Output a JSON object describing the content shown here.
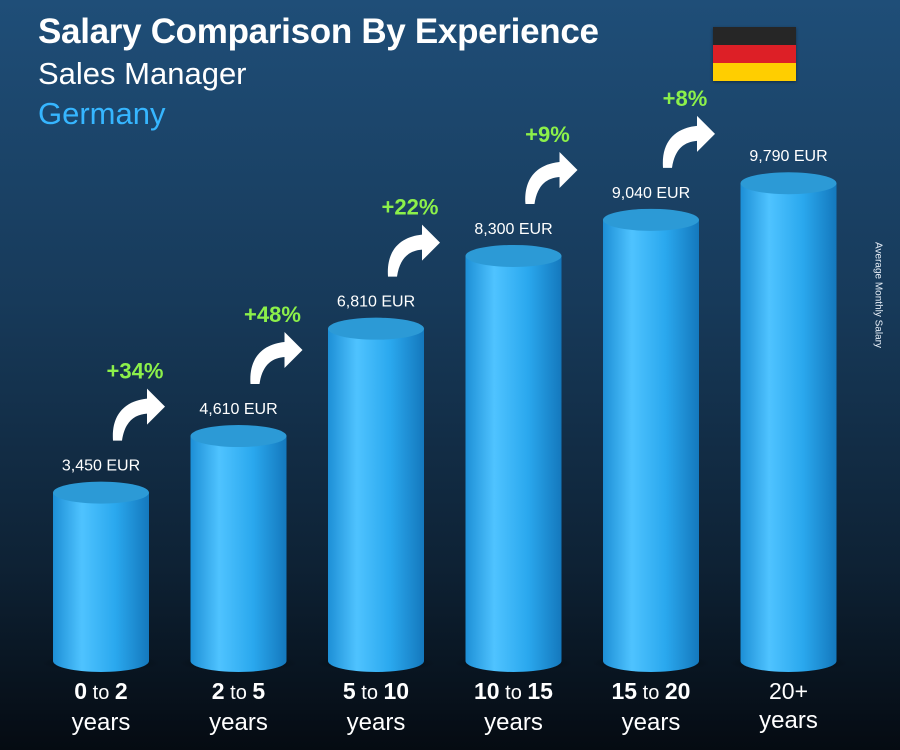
{
  "header": {
    "title": "Salary Comparison By Experience",
    "subtitle": "Sales Manager",
    "country": "Germany"
  },
  "side_label": "Average Monthly Salary",
  "flag_colors": [
    "#262626",
    "#dd1f26",
    "#ffce00"
  ],
  "colors": {
    "bar_front": "#27a6ec",
    "bar_highlight": "#4fc3ff",
    "bar_top": "#2c9ad6",
    "percent": "#8cf04a",
    "arrow": "#ffffff"
  },
  "chart_data": {
    "type": "bar",
    "title": "Salary Comparison By Experience",
    "ylabel": "Average Monthly Salary",
    "unit": "EUR",
    "categories": [
      {
        "a": "0",
        "to": "to",
        "b": "2",
        "unit": "years"
      },
      {
        "a": "2",
        "to": "to",
        "b": "5",
        "unit": "years"
      },
      {
        "a": "5",
        "to": "to",
        "b": "10",
        "unit": "years"
      },
      {
        "a": "10",
        "to": "to",
        "b": "15",
        "unit": "years"
      },
      {
        "a": "15",
        "to": "to",
        "b": "20",
        "unit": "years"
      },
      {
        "a": "20+",
        "to": "",
        "b": "",
        "unit": "years"
      }
    ],
    "values": [
      3450,
      4610,
      6810,
      8300,
      9040,
      9790
    ],
    "value_labels": [
      "3,450 EUR",
      "4,610 EUR",
      "6,810 EUR",
      "8,300 EUR",
      "9,040 EUR",
      "9,790 EUR"
    ],
    "increases": [
      "+34%",
      "+48%",
      "+22%",
      "+9%",
      "+8%"
    ]
  }
}
